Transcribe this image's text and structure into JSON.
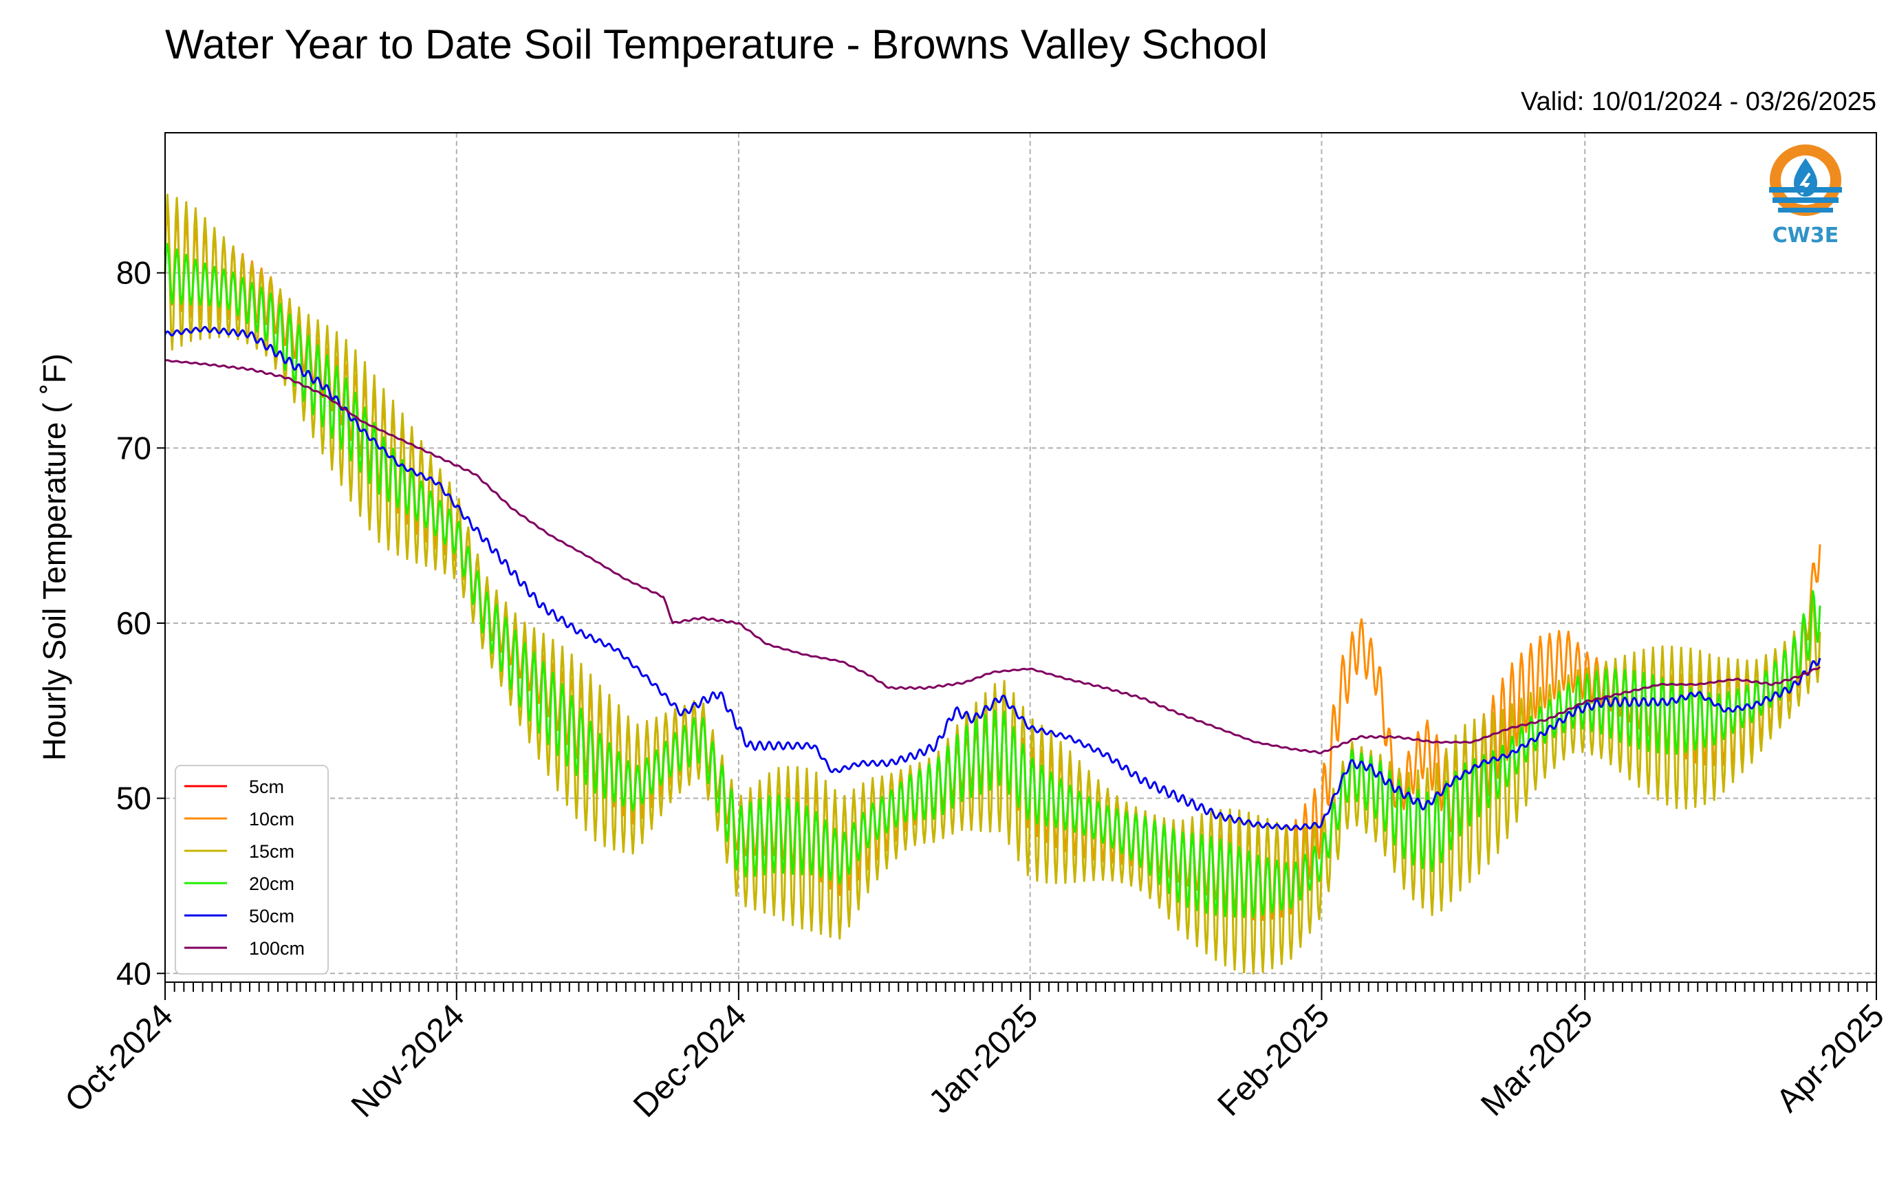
{
  "chart_data": {
    "type": "line",
    "title": "Water Year to Date Soil Temperature - Browns Valley School",
    "subtitle": "Valid: 10/01/2024 - 03/26/2025",
    "ylabel": "Hourly Soil Temperature ( ˚F)",
    "xlabel": "",
    "x_range": [
      "2024-10-01",
      "2025-04-01"
    ],
    "ylim": [
      39.5,
      88
    ],
    "grid": true,
    "legend_position": "lower-left",
    "y_ticks": [
      40,
      50,
      60,
      70,
      80
    ],
    "x_ticks": [
      {
        "date": "2024-10-01",
        "label": "Oct-2024"
      },
      {
        "date": "2024-11-01",
        "label": "Nov-2024"
      },
      {
        "date": "2024-12-01",
        "label": "Dec-2024"
      },
      {
        "date": "2025-01-01",
        "label": "Jan-2025"
      },
      {
        "date": "2025-02-01",
        "label": "Feb-2025"
      },
      {
        "date": "2025-03-01",
        "label": "Mar-2025"
      },
      {
        "date": "2025-04-01",
        "label": "Apr-2025"
      }
    ],
    "logo_text": "CW3E",
    "series": [
      {
        "name": "5cm",
        "color": "#ff0000",
        "points": []
      },
      {
        "name": "10cm",
        "color": "#ff8c00",
        "points": [
          [
            "2024-10-01",
            81
          ],
          [
            "2024-10-04",
            80
          ],
          [
            "2024-10-08",
            79.5
          ],
          [
            "2024-10-12",
            78.5
          ],
          [
            "2024-10-16",
            75.5
          ],
          [
            "2024-10-20",
            73
          ],
          [
            "2024-10-24",
            70
          ],
          [
            "2024-10-28",
            67.5
          ],
          [
            "2024-11-01",
            65.5
          ],
          [
            "2024-11-04",
            61
          ],
          [
            "2024-11-08",
            58
          ],
          [
            "2024-11-12",
            55.5
          ],
          [
            "2024-11-16",
            53
          ],
          [
            "2024-11-20",
            51
          ],
          [
            "2024-11-24",
            53
          ],
          [
            "2024-11-27",
            54
          ],
          [
            "2024-12-01",
            48
          ],
          [
            "2024-12-05",
            48.5
          ],
          [
            "2024-12-09",
            48
          ],
          [
            "2024-12-12",
            47
          ],
          [
            "2024-12-15",
            48.5
          ],
          [
            "2024-12-19",
            50
          ],
          [
            "2024-12-22",
            50.5
          ],
          [
            "2024-12-25",
            52
          ],
          [
            "2024-12-29",
            53
          ],
          [
            "2025-01-01",
            50.5
          ],
          [
            "2025-01-05",
            49.5
          ],
          [
            "2025-01-09",
            48.5
          ],
          [
            "2025-01-13",
            47.5
          ],
          [
            "2025-01-17",
            46.5
          ],
          [
            "2025-01-21",
            46
          ],
          [
            "2025-01-25",
            45.5
          ],
          [
            "2025-01-29",
            46
          ],
          [
            "2025-02-01",
            49
          ],
          [
            "2025-02-03",
            56
          ],
          [
            "2025-02-05",
            59
          ],
          [
            "2025-02-07",
            57
          ],
          [
            "2025-02-09",
            50
          ],
          [
            "2025-02-12",
            53
          ],
          [
            "2025-02-15",
            50
          ],
          [
            "2025-02-18",
            52
          ],
          [
            "2025-02-21",
            55
          ],
          [
            "2025-02-24",
            57
          ],
          [
            "2025-02-27",
            58
          ],
          [
            "2025-03-01",
            57
          ],
          [
            "2025-03-05",
            56
          ],
          [
            "2025-03-09",
            55
          ],
          [
            "2025-03-13",
            54.5
          ],
          [
            "2025-03-17",
            54.5
          ],
          [
            "2025-03-21",
            56
          ],
          [
            "2025-03-24",
            58
          ],
          [
            "2025-03-26",
            64.5
          ]
        ]
      },
      {
        "name": "15cm",
        "color": "#c8b400",
        "points": [
          [
            "2024-10-01",
            80
          ],
          [
            "2024-10-04",
            80
          ],
          [
            "2024-10-08",
            79
          ],
          [
            "2024-10-12",
            77.5
          ],
          [
            "2024-10-16",
            74.5
          ],
          [
            "2024-10-20",
            72
          ],
          [
            "2024-10-24",
            69
          ],
          [
            "2024-10-28",
            67
          ],
          [
            "2024-11-01",
            65
          ],
          [
            "2024-11-04",
            60.5
          ],
          [
            "2024-11-08",
            57
          ],
          [
            "2024-11-12",
            54.5
          ],
          [
            "2024-11-16",
            52
          ],
          [
            "2024-11-20",
            50.5
          ],
          [
            "2024-11-24",
            52.5
          ],
          [
            "2024-11-27",
            53.5
          ],
          [
            "2024-12-01",
            47
          ],
          [
            "2024-12-05",
            47.5
          ],
          [
            "2024-12-09",
            47
          ],
          [
            "2024-12-12",
            46
          ],
          [
            "2024-12-15",
            48
          ],
          [
            "2024-12-19",
            49.5
          ],
          [
            "2024-12-22",
            50
          ],
          [
            "2024-12-25",
            51.5
          ],
          [
            "2024-12-29",
            52.5
          ],
          [
            "2025-01-01",
            50
          ],
          [
            "2025-01-05",
            49
          ],
          [
            "2025-01-09",
            48
          ],
          [
            "2025-01-13",
            47
          ],
          [
            "2025-01-17",
            45.5
          ],
          [
            "2025-01-21",
            45
          ],
          [
            "2025-01-25",
            44.5
          ],
          [
            "2025-01-29",
            44.5
          ],
          [
            "2025-02-01",
            46
          ],
          [
            "2025-02-04",
            51
          ],
          [
            "2025-02-07",
            50
          ],
          [
            "2025-02-10",
            48
          ],
          [
            "2025-02-13",
            47.5
          ],
          [
            "2025-02-16",
            49.5
          ],
          [
            "2025-02-20",
            51
          ],
          [
            "2025-02-24",
            53.5
          ],
          [
            "2025-02-28",
            55
          ],
          [
            "2025-03-03",
            55
          ],
          [
            "2025-03-07",
            54.5
          ],
          [
            "2025-03-11",
            54
          ],
          [
            "2025-03-15",
            54
          ],
          [
            "2025-03-19",
            55
          ],
          [
            "2025-03-23",
            57
          ],
          [
            "2025-03-26",
            59.5
          ]
        ]
      },
      {
        "name": "20cm",
        "color": "#22ee00",
        "points": [
          [
            "2024-10-01",
            80
          ],
          [
            "2024-10-04",
            79.5
          ],
          [
            "2024-10-08",
            79
          ],
          [
            "2024-10-12",
            77.5
          ],
          [
            "2024-10-16",
            74.5
          ],
          [
            "2024-10-20",
            72
          ],
          [
            "2024-10-24",
            69
          ],
          [
            "2024-10-28",
            67
          ],
          [
            "2024-11-01",
            65
          ],
          [
            "2024-11-04",
            60.5
          ],
          [
            "2024-11-08",
            57
          ],
          [
            "2024-11-12",
            54.5
          ],
          [
            "2024-11-16",
            52
          ],
          [
            "2024-11-20",
            50.5
          ],
          [
            "2024-11-24",
            52.5
          ],
          [
            "2024-11-27",
            53.5
          ],
          [
            "2024-12-01",
            47.5
          ],
          [
            "2024-12-05",
            48
          ],
          [
            "2024-12-09",
            47.5
          ],
          [
            "2024-12-12",
            46.5
          ],
          [
            "2024-12-15",
            48.5
          ],
          [
            "2024-12-19",
            50
          ],
          [
            "2024-12-22",
            50.5
          ],
          [
            "2024-12-25",
            52
          ],
          [
            "2024-12-29",
            53
          ],
          [
            "2025-01-01",
            50.5
          ],
          [
            "2025-01-05",
            49.5
          ],
          [
            "2025-01-09",
            48.5
          ],
          [
            "2025-01-13",
            47.5
          ],
          [
            "2025-01-17",
            46
          ],
          [
            "2025-01-21",
            45.5
          ],
          [
            "2025-01-25",
            45
          ],
          [
            "2025-01-29",
            45
          ],
          [
            "2025-02-01",
            46.5
          ],
          [
            "2025-02-04",
            51.5
          ],
          [
            "2025-02-07",
            50.5
          ],
          [
            "2025-02-10",
            48.5
          ],
          [
            "2025-02-13",
            48
          ],
          [
            "2025-02-16",
            50
          ],
          [
            "2025-02-20",
            51.5
          ],
          [
            "2025-02-24",
            54
          ],
          [
            "2025-02-28",
            55.5
          ],
          [
            "2025-03-03",
            55.5
          ],
          [
            "2025-03-07",
            55
          ],
          [
            "2025-03-11",
            54.5
          ],
          [
            "2025-03-15",
            54.5
          ],
          [
            "2025-03-19",
            55.5
          ],
          [
            "2025-03-23",
            57.5
          ],
          [
            "2025-03-26",
            61
          ]
        ]
      },
      {
        "name": "50cm",
        "color": "#0000ee",
        "points": [
          [
            "2024-10-01",
            76.5
          ],
          [
            "2024-10-05",
            76.8
          ],
          [
            "2024-10-10",
            76.5
          ],
          [
            "2024-10-14",
            75
          ],
          [
            "2024-10-18",
            73.5
          ],
          [
            "2024-10-22",
            71
          ],
          [
            "2024-10-26",
            69
          ],
          [
            "2024-10-30",
            68
          ],
          [
            "2024-11-02",
            66
          ],
          [
            "2024-11-06",
            63.5
          ],
          [
            "2024-11-10",
            61
          ],
          [
            "2024-11-14",
            59.5
          ],
          [
            "2024-11-18",
            58.5
          ],
          [
            "2024-11-22",
            56.5
          ],
          [
            "2024-11-25",
            54.8
          ],
          [
            "2024-11-27",
            55.5
          ],
          [
            "2024-11-29",
            56
          ],
          [
            "2024-12-02",
            53
          ],
          [
            "2024-12-06",
            53
          ],
          [
            "2024-12-09",
            53
          ],
          [
            "2024-12-11",
            51.5
          ],
          [
            "2024-12-14",
            52
          ],
          [
            "2024-12-17",
            52
          ],
          [
            "2024-12-20",
            52.5
          ],
          [
            "2024-12-22",
            53
          ],
          [
            "2024-12-24",
            55
          ],
          [
            "2024-12-26",
            54.5
          ],
          [
            "2024-12-29",
            55.8
          ],
          [
            "2025-01-01",
            54
          ],
          [
            "2025-01-05",
            53.5
          ],
          [
            "2025-01-09",
            52.5
          ],
          [
            "2025-01-13",
            51
          ],
          [
            "2025-01-17",
            50
          ],
          [
            "2025-01-21",
            49
          ],
          [
            "2025-01-25",
            48.5
          ],
          [
            "2025-01-29",
            48.3
          ],
          [
            "2025-02-01",
            48.5
          ],
          [
            "2025-02-04",
            52
          ],
          [
            "2025-02-06",
            51.8
          ],
          [
            "2025-02-09",
            50.5
          ],
          [
            "2025-02-12",
            49.5
          ],
          [
            "2025-02-15",
            51
          ],
          [
            "2025-02-18",
            52
          ],
          [
            "2025-02-21",
            52.5
          ],
          [
            "2025-02-24",
            53.5
          ],
          [
            "2025-02-28",
            55
          ],
          [
            "2025-03-03",
            55.5
          ],
          [
            "2025-03-07",
            55.5
          ],
          [
            "2025-03-10",
            55.5
          ],
          [
            "2025-03-13",
            56
          ],
          [
            "2025-03-16",
            55
          ],
          [
            "2025-03-19",
            55.3
          ],
          [
            "2025-03-23",
            56.3
          ],
          [
            "2025-03-26",
            58
          ]
        ]
      },
      {
        "name": "100cm",
        "color": "#800060",
        "points": [
          [
            "2024-10-01",
            75
          ],
          [
            "2024-10-05",
            74.8
          ],
          [
            "2024-10-10",
            74.5
          ],
          [
            "2024-10-14",
            74
          ],
          [
            "2024-10-18",
            73
          ],
          [
            "2024-10-22",
            71.5
          ],
          [
            "2024-10-26",
            70.5
          ],
          [
            "2024-10-30",
            69.5
          ],
          [
            "2024-11-03",
            68.5
          ],
          [
            "2024-11-07",
            66.5
          ],
          [
            "2024-11-11",
            65
          ],
          [
            "2024-11-15",
            63.8
          ],
          [
            "2024-11-19",
            62.5
          ],
          [
            "2024-11-23",
            61.5
          ],
          [
            "2024-11-24",
            60
          ],
          [
            "2024-11-27",
            60.3
          ],
          [
            "2024-12-01",
            60
          ],
          [
            "2024-12-04",
            58.8
          ],
          [
            "2024-12-08",
            58.2
          ],
          [
            "2024-12-12",
            57.8
          ],
          [
            "2024-12-15",
            57
          ],
          [
            "2024-12-17",
            56.3
          ],
          [
            "2024-12-21",
            56.3
          ],
          [
            "2024-12-25",
            56.6
          ],
          [
            "2024-12-28",
            57.2
          ],
          [
            "2025-01-01",
            57.4
          ],
          [
            "2025-01-05",
            56.8
          ],
          [
            "2025-01-09",
            56.3
          ],
          [
            "2025-01-13",
            55.7
          ],
          [
            "2025-01-17",
            54.8
          ],
          [
            "2025-01-21",
            54
          ],
          [
            "2025-01-25",
            53.2
          ],
          [
            "2025-01-29",
            52.8
          ],
          [
            "2025-02-01",
            52.6
          ],
          [
            "2025-02-05",
            53.5
          ],
          [
            "2025-02-09",
            53.5
          ],
          [
            "2025-02-13",
            53.2
          ],
          [
            "2025-02-17",
            53.2
          ],
          [
            "2025-02-21",
            54
          ],
          [
            "2025-02-25",
            54.5
          ],
          [
            "2025-03-01",
            55.5
          ],
          [
            "2025-03-05",
            56
          ],
          [
            "2025-03-09",
            56.5
          ],
          [
            "2025-03-13",
            56.5
          ],
          [
            "2025-03-17",
            56.8
          ],
          [
            "2025-03-21",
            56.5
          ],
          [
            "2025-03-24",
            57
          ],
          [
            "2025-03-26",
            57.5
          ]
        ]
      }
    ]
  }
}
